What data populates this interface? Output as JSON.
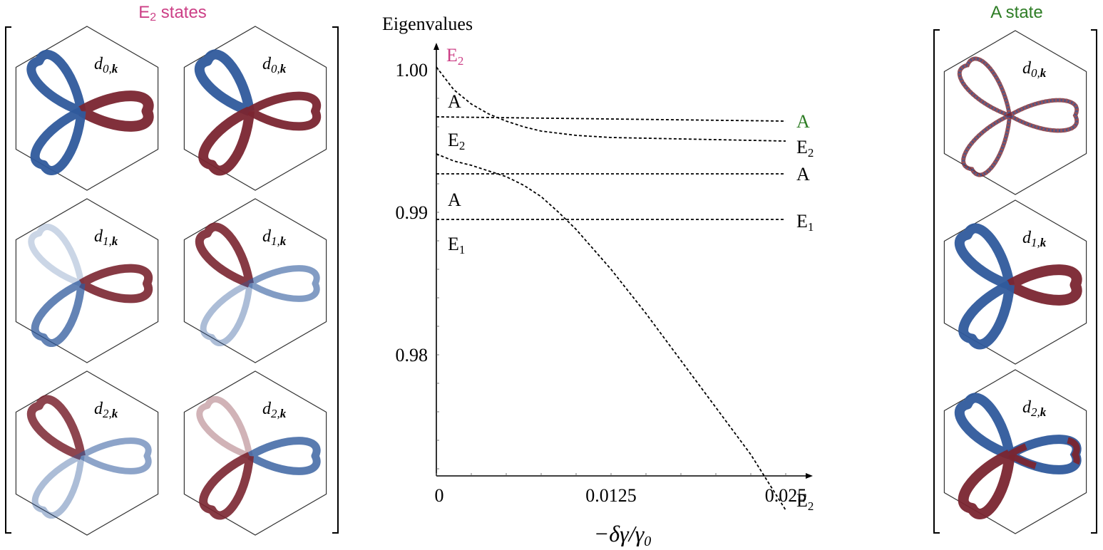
{
  "colors": {
    "blue": "#2f5a9c",
    "red": "#7a2530",
    "e2_title": "#cc3f86",
    "a_title": "#2e7d25",
    "hex_stroke": "#333333",
    "axis": "#000000"
  },
  "left_panel": {
    "title_main": "E",
    "title_sub": "2",
    "title_rest": " states",
    "tiles": [
      {
        "label_base": "d",
        "label_sub_num": "0,",
        "label_sub_bold": "k",
        "pattern": "e2-d0-a"
      },
      {
        "label_base": "d",
        "label_sub_num": "0,",
        "label_sub_bold": "k",
        "pattern": "e2-d0-b"
      },
      {
        "label_base": "d",
        "label_sub_num": "1,",
        "label_sub_bold": "k",
        "pattern": "e2-d1-a"
      },
      {
        "label_base": "d",
        "label_sub_num": "1,",
        "label_sub_bold": "k",
        "pattern": "e2-d1-b"
      },
      {
        "label_base": "d",
        "label_sub_num": "2,",
        "label_sub_bold": "k",
        "pattern": "e2-d2-a"
      },
      {
        "label_base": "d",
        "label_sub_num": "2,",
        "label_sub_bold": "k",
        "pattern": "e2-d2-b"
      }
    ]
  },
  "right_panel": {
    "title": "A state",
    "tiles": [
      {
        "label_base": "d",
        "label_sub_num": "0,",
        "label_sub_bold": "k",
        "pattern": "a-d0"
      },
      {
        "label_base": "d",
        "label_sub_num": "1,",
        "label_sub_bold": "k",
        "pattern": "a-d1"
      },
      {
        "label_base": "d",
        "label_sub_num": "2,",
        "label_sub_bold": "k",
        "pattern": "a-d2"
      }
    ]
  },
  "chart_data": {
    "type": "line",
    "ylabel": "Eigenvalues",
    "xlabel": "−δγ/γ",
    "xlabel_sub": "0",
    "xlim": [
      0,
      0.025
    ],
    "ylim": [
      0.9715,
      1.0015
    ],
    "x_ticks": [
      {
        "value": 0,
        "label": "0"
      },
      {
        "value": 0.0125,
        "label": "0.0125"
      },
      {
        "value": 0.025,
        "label": "0.025"
      }
    ],
    "y_ticks": [
      {
        "value": 1.0,
        "label": "1.00"
      },
      {
        "value": 0.99,
        "label": "0.99"
      },
      {
        "value": 0.98,
        "label": "0.98"
      }
    ],
    "line_style": "dashed",
    "series": [
      {
        "x": [
          0,
          0.00125,
          0.0025,
          0.00375,
          0.005,
          0.00625,
          0.0075,
          0.00875,
          0.01,
          0.0125,
          0.015,
          0.0175,
          0.02,
          0.0225,
          0.025
        ],
        "y": [
          1.0002,
          0.9986,
          0.9976,
          0.9969,
          0.9964,
          0.996,
          0.9957,
          0.99555,
          0.9954,
          0.99525,
          0.9952,
          0.99515,
          0.9951,
          0.99505,
          0.995
        ]
      },
      {
        "x": [
          0,
          0.025
        ],
        "y": [
          0.9967,
          0.9964
        ]
      },
      {
        "x": [
          0,
          0.00125,
          0.0025,
          0.00375,
          0.005,
          0.00625,
          0.0075,
          0.00875,
          0.01,
          0.0125,
          0.015,
          0.0175,
          0.02,
          0.0225,
          0.025
        ],
        "y": [
          0.9941,
          0.9936,
          0.9933,
          0.9929,
          0.9925,
          0.9919,
          0.9911,
          0.99,
          0.9888,
          0.986,
          0.9829,
          0.9796,
          0.9763,
          0.973,
          0.9691
        ]
      },
      {
        "x": [
          0,
          0.025
        ],
        "y": [
          0.9927,
          0.9927
        ]
      },
      {
        "x": [
          0,
          0.025
        ],
        "y": [
          0.9895,
          0.9895
        ]
      }
    ],
    "level_labels": [
      {
        "text": "E",
        "sub": "2",
        "side": "top",
        "color": "e2_title"
      },
      {
        "text": "A",
        "sub": "",
        "side": "left",
        "y": 0.9978
      },
      {
        "text": "E",
        "sub": "2",
        "side": "left",
        "y": 0.9951
      },
      {
        "text": "A",
        "sub": "",
        "side": "left",
        "y": 0.9909
      },
      {
        "text": "E",
        "sub": "1",
        "side": "left",
        "y": 0.9878
      },
      {
        "text": "A",
        "sub": "",
        "side": "right",
        "y": 0.9964,
        "color": "a_title"
      },
      {
        "text": "E",
        "sub": "2",
        "side": "right",
        "y": 0.9946
      },
      {
        "text": "A",
        "sub": "",
        "side": "right",
        "y": 0.9927
      },
      {
        "text": "E",
        "sub": "1",
        "side": "right",
        "y": 0.9894
      },
      {
        "text": "E",
        "sub": "2",
        "side": "right",
        "y": 0.9698
      }
    ]
  }
}
